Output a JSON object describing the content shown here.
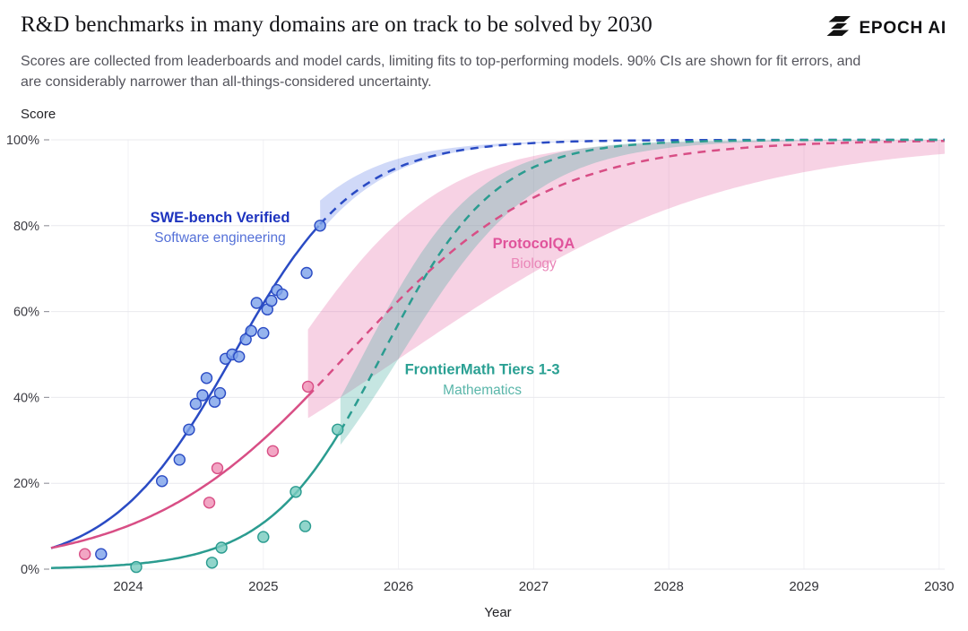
{
  "header": {
    "title": "R&D benchmarks in many domains are on track to be solved by 2030",
    "logo_text": "EPOCH AI",
    "subtitle": "Scores are collected from leaderboards and model cards, limiting fits to top-performing models. 90% CIs are shown for fit errors, and are considerably narrower than all-things-considered uncertainty."
  },
  "chart_data": {
    "type": "scatter",
    "title": "R&D benchmarks in many domains are on track to be solved by 2030",
    "xlabel": "Year",
    "ylabel": "Score",
    "xlim": [
      2023.43,
      2030
    ],
    "ylim": [
      0,
      100
    ],
    "x_ticks": [
      2024,
      2025,
      2026,
      2027,
      2028,
      2029,
      2030
    ],
    "y_ticks": [
      0,
      20,
      40,
      60,
      80,
      100
    ],
    "y_tick_labels": [
      "0%",
      "20%",
      "40%",
      "60%",
      "80%",
      "100%"
    ],
    "grid": true,
    "legend_position": "inline-labels",
    "series": [
      {
        "name": "SWE-bench Verified",
        "sublabel": "Software engineering",
        "color": "#2a4bc4",
        "point_fill": "#7fa3ea",
        "band_color": "rgba(86,120,230,0.28)",
        "label_color": "#1e34bf",
        "sublabel_color": "#5571d8",
        "label": {
          "x": 2024.68,
          "y": 80.8,
          "sub_y": 76.2
        },
        "fit": {
          "k": 2.2,
          "t0": 2024.78,
          "solid_until": 2025.42
        },
        "band": {
          "upper": {
            "k": 2.2,
            "t0": 2024.6
          },
          "lower": {
            "k": 2.2,
            "t0": 2024.83
          }
        },
        "points": [
          [
            2023.8,
            3.5
          ],
          [
            2024.25,
            20.5
          ],
          [
            2024.38,
            25.5
          ],
          [
            2024.45,
            32.5
          ],
          [
            2024.5,
            38.5
          ],
          [
            2024.55,
            40.5
          ],
          [
            2024.58,
            44.5
          ],
          [
            2024.64,
            39.0
          ],
          [
            2024.68,
            41.0
          ],
          [
            2024.72,
            49.0
          ],
          [
            2024.77,
            50.0
          ],
          [
            2024.82,
            49.5
          ],
          [
            2024.87,
            53.5
          ],
          [
            2024.91,
            55.5
          ],
          [
            2024.95,
            62.0
          ],
          [
            2025.0,
            55.0
          ],
          [
            2025.03,
            60.5
          ],
          [
            2025.06,
            62.5
          ],
          [
            2025.1,
            65.0
          ],
          [
            2025.14,
            64.0
          ],
          [
            2025.32,
            69.0
          ],
          [
            2025.42,
            80.0
          ]
        ]
      },
      {
        "name": "ProtocolQA",
        "sublabel": "Biology",
        "color": "#d84e85",
        "point_fill": "#ef93b7",
        "band_color": "rgba(230,105,165,0.30)",
        "label_color": "#e0549b",
        "sublabel_color": "#ea86b8",
        "label": {
          "x": 2027.0,
          "y": 74.7,
          "sub_y": 70.1
        },
        "fit": {
          "k": 1.35,
          "t0": 2025.62,
          "solid_until": 2025.33
        },
        "band": {
          "upper": {
            "k": 1.8,
            "t0": 2025.2
          },
          "lower": {
            "k": 0.85,
            "t0": 2026.05
          }
        },
        "points": [
          [
            2023.68,
            3.5
          ],
          [
            2024.6,
            15.5
          ],
          [
            2024.66,
            23.5
          ],
          [
            2025.07,
            27.5
          ],
          [
            2025.33,
            42.5
          ]
        ]
      },
      {
        "name": "FrontierMath Tiers 1-3",
        "sublabel": "Mathematics",
        "color": "#2b9c90",
        "point_fill": "#79ccc0",
        "band_color": "rgba(66,172,160,0.30)",
        "label_color": "#2aa093",
        "sublabel_color": "#5ab6aa",
        "label": {
          "x": 2026.62,
          "y": 45.4,
          "sub_y": 40.7
        },
        "fit": {
          "k": 2.4,
          "t0": 2025.88,
          "solid_until": 2025.57
        },
        "band": {
          "upper": {
            "k": 2.4,
            "t0": 2025.74
          },
          "lower": {
            "k": 2.0,
            "t0": 2026.02
          }
        },
        "points": [
          [
            2024.06,
            0.5
          ],
          [
            2024.62,
            1.5
          ],
          [
            2024.69,
            5.0
          ],
          [
            2025.0,
            7.5
          ],
          [
            2025.24,
            18.0
          ],
          [
            2025.31,
            10.0
          ],
          [
            2025.55,
            32.5
          ]
        ]
      }
    ]
  }
}
